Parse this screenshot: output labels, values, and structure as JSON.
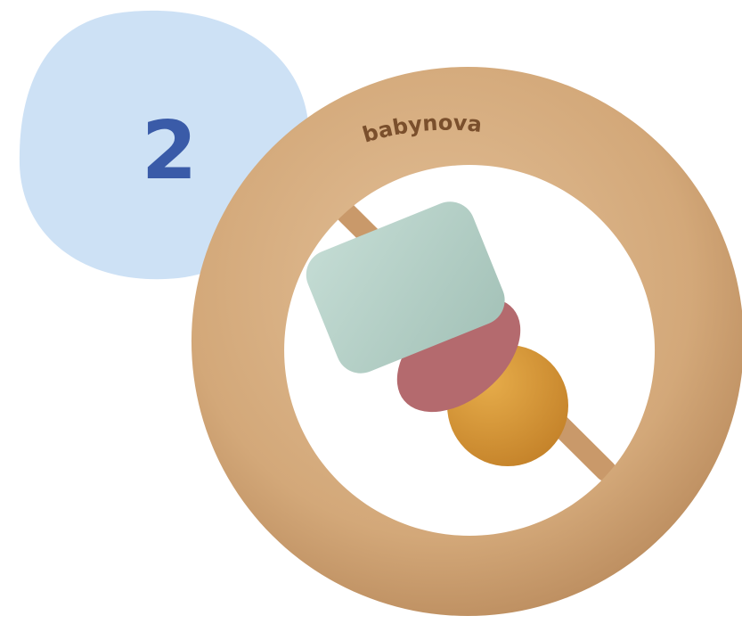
{
  "badge": {
    "number": "2"
  },
  "product": {
    "brand": "babynova"
  }
}
